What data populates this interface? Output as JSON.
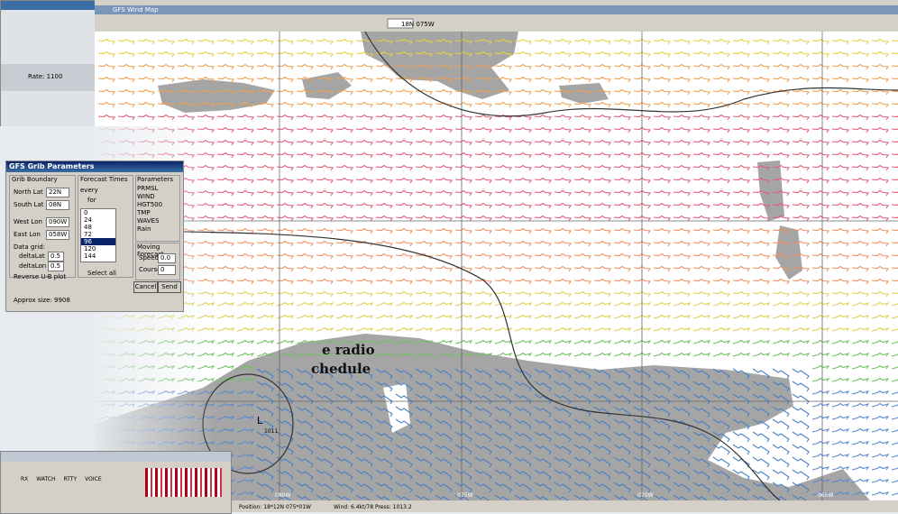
{
  "background_window": {
    "status": "Rate: 1100"
  },
  "map_window": {
    "title": "GFS Wind Map",
    "coord": "18N 075W"
  },
  "dialog": {
    "title": "GFS Grib Parameters",
    "boundary": {
      "heading": "Grib Boundary",
      "north_label": "North Lat",
      "north_value": "22N",
      "south_label": "South Lat",
      "south_value": "08N",
      "west_label": "West Lon",
      "west_value": "090W",
      "east_label": "East Lon",
      "east_value": "058W"
    },
    "grid": {
      "heading": "Data grid:",
      "dlat_label": "deltaLat",
      "dlat_value": "0.5",
      "dlon_label": "deltaLon",
      "dlon_value": "0.5",
      "reverse_label": "Reverse U-B plot"
    },
    "forecast": {
      "heading": "Forecast Times",
      "from_label": "every",
      "to_label": "for",
      "rows": [
        "0",
        "24",
        "48",
        "72",
        "96",
        "120",
        "144"
      ],
      "select_all": "Select all"
    },
    "parameters": {
      "heading": "Parameters",
      "items": [
        "PRMSL",
        "WIND",
        "HGT500",
        "TMP",
        "WAVES",
        "Rain"
      ]
    },
    "moving": {
      "heading": "Moving Forecast",
      "speed_label": "Speed",
      "speed_value": "0.0",
      "course_label": "Course",
      "course_value": "0"
    },
    "buttons": [
      "Cancel",
      "Send"
    ],
    "size": "Approx size: 9908"
  },
  "article": {
    "lines": [
      "e radio",
      "chedule"
    ]
  },
  "map": {
    "low_label": "L",
    "pressure": "1011",
    "lon_labels": [
      "080W",
      "075W",
      "070W",
      "065W"
    ]
  },
  "bottom_window": {
    "buttons": [
      "RX",
      "WATCH",
      "RTTY",
      "VOICE"
    ]
  },
  "status": {
    "position": "Position: 18*12N 075*01W",
    "wind": "Wind: 6.4kt/78 Press: 1013.2"
  }
}
